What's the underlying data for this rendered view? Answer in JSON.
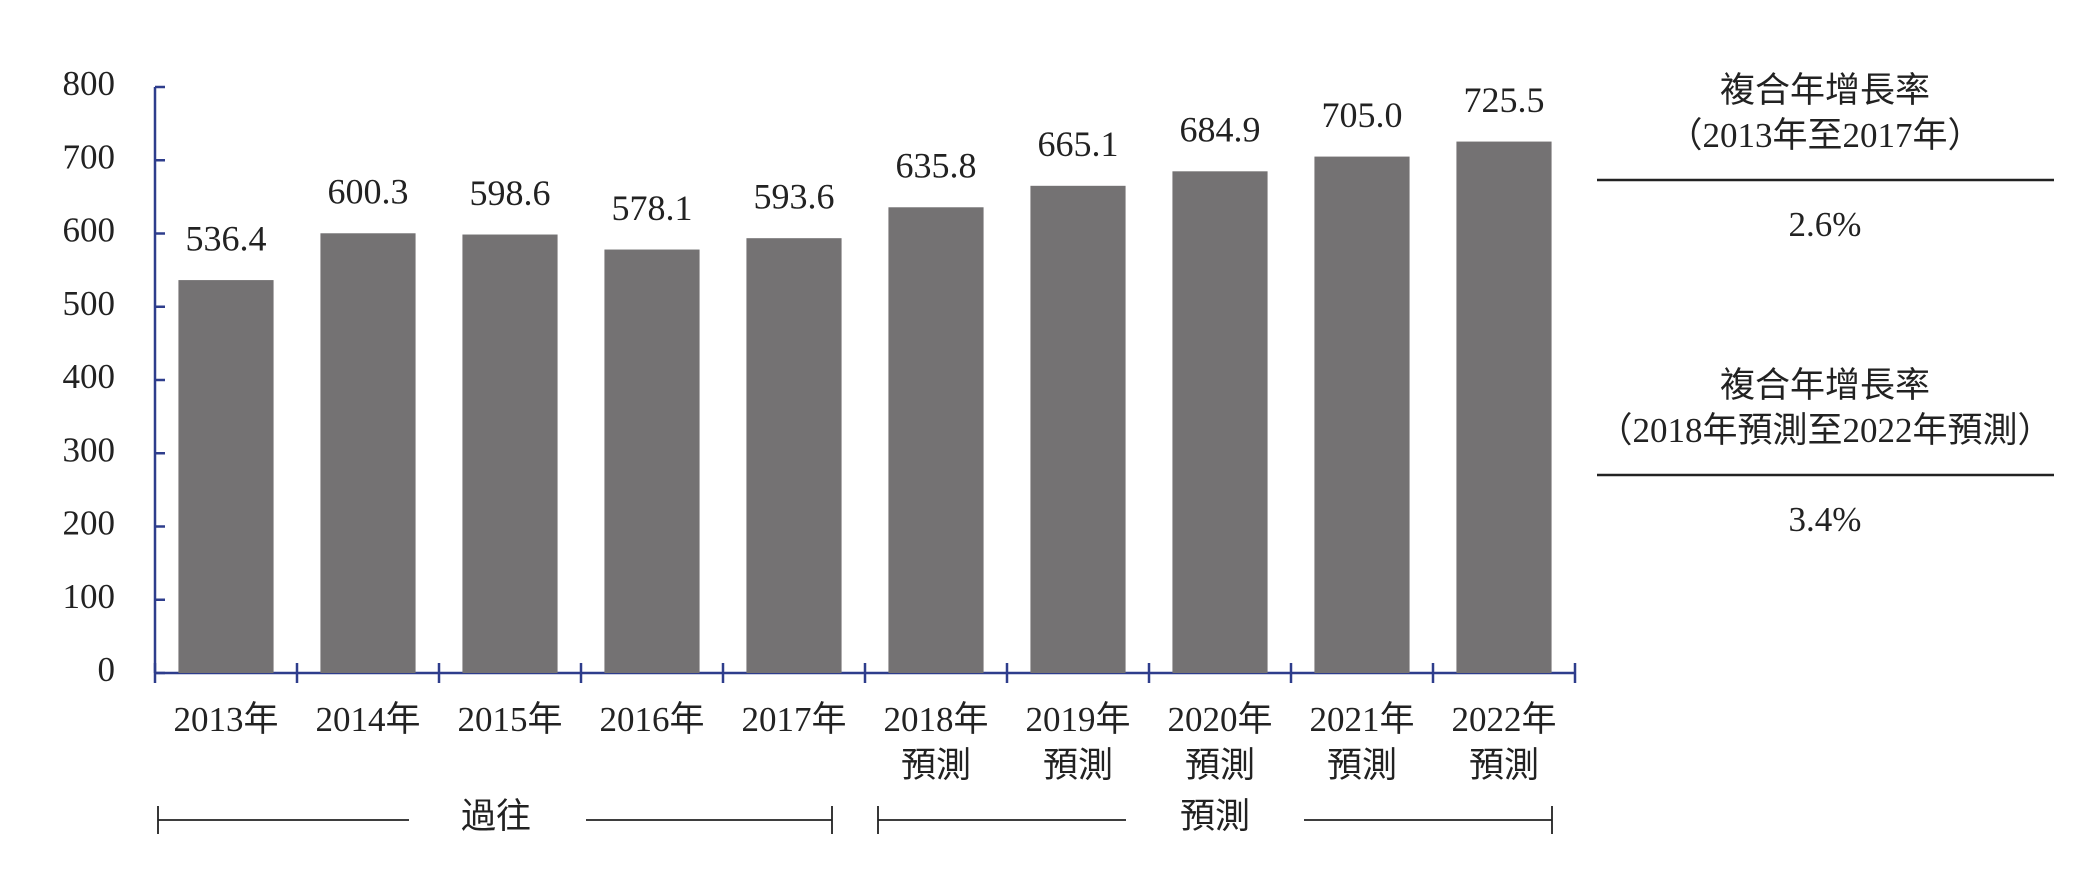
{
  "chart_data": {
    "type": "bar",
    "categories": [
      "2013年",
      "2014年",
      "2015年",
      "2016年",
      "2017年",
      "2018年",
      "2019年",
      "2020年",
      "2021年",
      "2022年"
    ],
    "category_sublabels": [
      null,
      null,
      null,
      null,
      null,
      "預測",
      "預測",
      "預測",
      "預測",
      "預測"
    ],
    "values": [
      536.4,
      600.3,
      598.6,
      578.1,
      593.6,
      635.8,
      665.1,
      684.9,
      705.0,
      725.5
    ],
    "value_labels": [
      "536.4",
      "600.3",
      "598.6",
      "578.1",
      "593.6",
      "635.8",
      "665.1",
      "684.9",
      "705.0",
      "725.5"
    ],
    "color": "#747273",
    "axis_color": "#2e3d8c",
    "ylim": [
      0,
      800
    ],
    "yticks": [
      0,
      100,
      200,
      300,
      400,
      500,
      600,
      700,
      800
    ],
    "periods": [
      {
        "label": "過往"
      },
      {
        "label": "預測"
      }
    ],
    "cagr": [
      {
        "title": "複合年增長率",
        "period": "（2013年至2017年）",
        "value": "2.6%"
      },
      {
        "title": "複合年增長率",
        "period": "（2018年預測至2022年預測）",
        "value": "3.4%"
      }
    ]
  }
}
